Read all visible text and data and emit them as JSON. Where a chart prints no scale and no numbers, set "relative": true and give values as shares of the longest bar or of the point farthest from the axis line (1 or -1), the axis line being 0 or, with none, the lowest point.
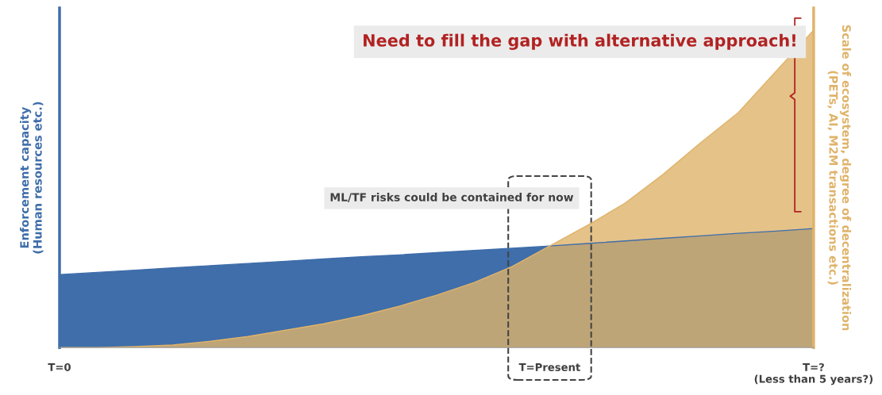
{
  "chart_data": {
    "type": "area",
    "relative": true,
    "categories": [
      "T=0",
      null,
      null,
      null,
      null,
      null,
      null,
      null,
      null,
      null,
      null,
      null,
      null,
      "T=Present",
      null,
      null,
      null,
      null,
      null,
      null,
      "T=?\n(Less than 5 years?)"
    ],
    "ylabel": "Enforcement capacity\n(Human resources etc.)",
    "y2label": "Scale of ecosystem, degree of decentralization\n(PETs, AI, M2M transactions etc.)",
    "series": [
      {
        "color": "#3f6eaa",
        "values": [
          0.23,
          0.237,
          0.244,
          0.251,
          0.258,
          0.265,
          0.272,
          0.279,
          0.286,
          0.292,
          0.299,
          0.306,
          0.313,
          0.32,
          0.328,
          0.336,
          0.344,
          0.352,
          0.36,
          0.367,
          0.375
        ]
      },
      {
        "color": "#dfb36a",
        "values": [
          0,
          0,
          0.003,
          0.008,
          0.02,
          0.035,
          0.055,
          0.075,
          0.1,
          0.13,
          0.165,
          0.205,
          0.255,
          0.32,
          0.385,
          0.455,
          0.545,
          0.645,
          0.74,
          0.87,
          1
        ]
      }
    ],
    "annotations": [
      "Need to fill the gap with alternative approach!",
      "ML/TF risks could be contained for now"
    ],
    "grid": false,
    "legend": false
  }
}
